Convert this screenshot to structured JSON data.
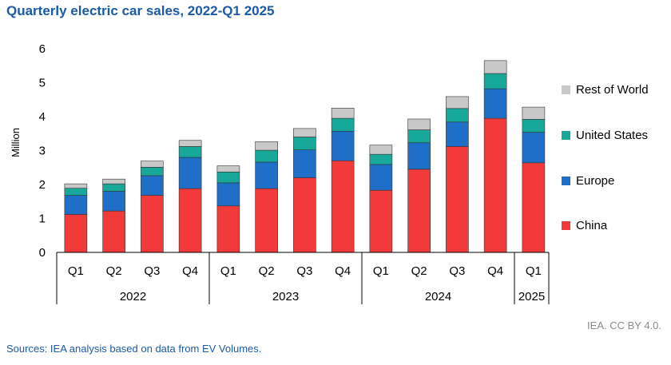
{
  "title": "Quarterly electric car sales, 2022-Q1 2025",
  "credit": "IEA. CC BY 4.0.",
  "source": "Sources: IEA analysis based on data from EV Volumes.",
  "chart_data": {
    "type": "bar",
    "stacked": true,
    "ylabel": "Million",
    "ylim": [
      0,
      6
    ],
    "yticks": [
      0,
      1,
      2,
      3,
      4,
      5,
      6
    ],
    "categories": [
      "Q1",
      "Q2",
      "Q3",
      "Q4",
      "Q1",
      "Q2",
      "Q3",
      "Q4",
      "Q1",
      "Q2",
      "Q3",
      "Q4",
      "Q1"
    ],
    "groups": [
      {
        "label": "2022",
        "count": 4
      },
      {
        "label": "2023",
        "count": 4
      },
      {
        "label": "2024",
        "count": 4
      },
      {
        "label": "2025",
        "count": 1
      }
    ],
    "series": [
      {
        "name": "China",
        "color": "#f23a3a",
        "values": [
          1.12,
          1.22,
          1.68,
          1.88,
          1.37,
          1.88,
          2.2,
          2.7,
          1.83,
          2.45,
          3.12,
          3.95,
          2.64
        ]
      },
      {
        "name": "Europe",
        "color": "#1f6fc9",
        "values": [
          0.56,
          0.58,
          0.58,
          0.92,
          0.68,
          0.78,
          0.82,
          0.87,
          0.76,
          0.78,
          0.72,
          0.87,
          0.9
        ]
      },
      {
        "name": "United States",
        "color": "#17a89a",
        "values": [
          0.21,
          0.22,
          0.25,
          0.32,
          0.32,
          0.35,
          0.38,
          0.38,
          0.3,
          0.38,
          0.4,
          0.45,
          0.38
        ]
      },
      {
        "name": "Rest of World",
        "color": "#c8c8c8",
        "values": [
          0.13,
          0.14,
          0.18,
          0.18,
          0.18,
          0.25,
          0.25,
          0.3,
          0.27,
          0.32,
          0.35,
          0.38,
          0.36
        ]
      }
    ],
    "legend_order": [
      "Rest of World",
      "United States",
      "Europe",
      "China"
    ]
  }
}
